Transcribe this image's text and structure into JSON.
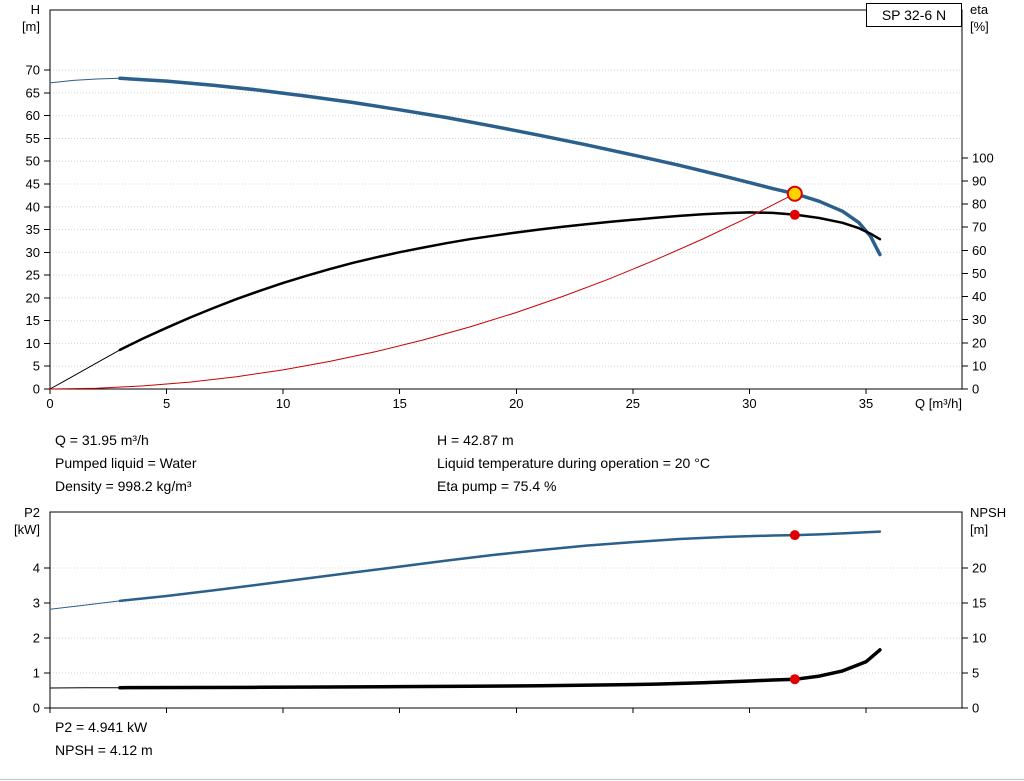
{
  "header": {
    "pump_model": "SP 32-6 N"
  },
  "duty_info": {
    "left": [
      "Q = 31.95 m³/h",
      "Pumped liquid = Water",
      "Density = 998.2 kg/m³"
    ],
    "right": [
      "H = 42.87 m",
      "Liquid temperature during operation = 20 °C",
      "Eta pump = 75.4 %"
    ]
  },
  "result_info": [
    "P2 = 4.941 kW",
    "NPSH = 4.12 m"
  ],
  "colors": {
    "curve_blue": "#2b5f8c",
    "curve_black": "#000000",
    "system_red": "#cc0000",
    "dot_red": "#e00000",
    "duty_yellow": "#ffd400"
  },
  "chart_data": [
    {
      "id": "qh",
      "type": "line",
      "title": "SP 32-6 N",
      "x_axis": {
        "label": "Q [m³/h]",
        "min": 0,
        "max": 39.12,
        "ticks": [
          0,
          5,
          10,
          15,
          20,
          25,
          30,
          35
        ],
        "show_labels": true
      },
      "y_left": {
        "label": "H",
        "unit": "[m]",
        "min": 0,
        "max": 83.2,
        "ticks": [
          0,
          5,
          10,
          15,
          20,
          25,
          30,
          35,
          40,
          45,
          50,
          55,
          60,
          65,
          70
        ]
      },
      "y_right": {
        "label": "eta",
        "unit": "[%]",
        "min": 0,
        "max": 164,
        "ticks": [
          0,
          10,
          20,
          30,
          40,
          50,
          60,
          70,
          80,
          90,
          100
        ]
      },
      "grid": true,
      "series": [
        {
          "name": "qh-curve-lead",
          "axis": "left",
          "color": "#2b5f8c",
          "width": 1,
          "points": [
            [
              0,
              67.2
            ],
            [
              1,
              67.75
            ],
            [
              2,
              68.05
            ],
            [
              3,
              68.2
            ]
          ]
        },
        {
          "name": "qh-curve",
          "axis": "left",
          "color": "#2b5f8c",
          "width": 3.5,
          "points": [
            [
              3,
              68.2
            ],
            [
              5,
              67.6
            ],
            [
              7,
              66.7
            ],
            [
              9,
              65.6
            ],
            [
              11,
              64.3
            ],
            [
              13,
              62.9
            ],
            [
              15,
              61.3
            ],
            [
              17,
              59.6
            ],
            [
              19,
              57.7
            ],
            [
              21,
              55.7
            ],
            [
              23,
              53.6
            ],
            [
              25,
              51.4
            ],
            [
              27,
              49.1
            ],
            [
              29,
              46.6
            ],
            [
              30,
              45.3
            ],
            [
              31,
              44.0
            ],
            [
              32,
              42.8
            ],
            [
              33,
              41.2
            ],
            [
              34,
              39.0
            ],
            [
              34.7,
              36.5
            ],
            [
              35.2,
              33.5
            ],
            [
              35.6,
              29.5
            ]
          ]
        },
        {
          "name": "eta-curve-lead",
          "axis": "right",
          "color": "#000000",
          "width": 1,
          "points": [
            [
              0,
              0
            ],
            [
              1,
              5.6
            ],
            [
              2,
              11.3
            ],
            [
              3,
              16.9
            ]
          ]
        },
        {
          "name": "eta-curve",
          "axis": "right",
          "color": "#000000",
          "width": 2.5,
          "points": [
            [
              3,
              16.9
            ],
            [
              4,
              21.9
            ],
            [
              5,
              26.5
            ],
            [
              6,
              30.9
            ],
            [
              7,
              35.0
            ],
            [
              8,
              38.9
            ],
            [
              9,
              42.5
            ],
            [
              10,
              45.9
            ],
            [
              11,
              49.0
            ],
            [
              12,
              51.9
            ],
            [
              13,
              54.6
            ],
            [
              14,
              57.0
            ],
            [
              15,
              59.2
            ],
            [
              16,
              61.2
            ],
            [
              17,
              63.1
            ],
            [
              18,
              64.8
            ],
            [
              19,
              66.3
            ],
            [
              20,
              67.7
            ],
            [
              21,
              69.0
            ],
            [
              22,
              70.2
            ],
            [
              23,
              71.3
            ],
            [
              24,
              72.3
            ],
            [
              25,
              73.2
            ],
            [
              26,
              74.1
            ],
            [
              27,
              74.9
            ],
            [
              28,
              75.6
            ],
            [
              29,
              76.1
            ],
            [
              30,
              76.4
            ],
            [
              31,
              76.2
            ],
            [
              32,
              75.4
            ],
            [
              33,
              74.0
            ],
            [
              34,
              71.9
            ],
            [
              34.7,
              69.6
            ],
            [
              35.2,
              67.2
            ],
            [
              35.6,
              64.8
            ]
          ]
        },
        {
          "name": "system-curve",
          "axis": "left",
          "color": "#cc0000",
          "width": 1,
          "points": [
            [
              0,
              0
            ],
            [
              2,
              0.17
            ],
            [
              4,
              0.67
            ],
            [
              6,
              1.51
            ],
            [
              8,
              2.69
            ],
            [
              10,
              4.2
            ],
            [
              12,
              6.05
            ],
            [
              14,
              8.23
            ],
            [
              16,
              10.75
            ],
            [
              18,
              13.61
            ],
            [
              20,
              16.8
            ],
            [
              22,
              20.33
            ],
            [
              24,
              24.19
            ],
            [
              26,
              28.4
            ],
            [
              28,
              32.93
            ],
            [
              30,
              37.81
            ],
            [
              31.95,
              42.87
            ]
          ]
        }
      ],
      "markers": [
        {
          "name": "duty-point",
          "axis": "left",
          "x": 31.95,
          "y": 42.87,
          "r": 7,
          "fill": "#ffd400",
          "stroke": "#dd0000",
          "sw": 2,
          "interactable": true
        },
        {
          "name": "eta-duty-dot",
          "axis": "right",
          "x": 31.95,
          "y": 75.4,
          "r": 5,
          "fill": "#e00000",
          "stroke": "none",
          "sw": 0,
          "interactable": false
        }
      ]
    },
    {
      "id": "power",
      "type": "line",
      "x_axis": {
        "label": "",
        "min": 0,
        "max": 39.12,
        "ticks": [
          0,
          5,
          10,
          15,
          20,
          25,
          30,
          35
        ],
        "show_labels": false
      },
      "y_left": {
        "label": "P2",
        "unit": "[kW]",
        "min": 0,
        "max": 5.6,
        "ticks": [
          0,
          1,
          2,
          3,
          4
        ]
      },
      "y_right": {
        "label": "NPSH",
        "unit": "[m]",
        "min": 0,
        "max": 28,
        "ticks": [
          0,
          5,
          10,
          15,
          20
        ]
      },
      "grid": true,
      "series": [
        {
          "name": "p2-curve-lead",
          "axis": "left",
          "color": "#2b5f8c",
          "width": 1,
          "points": [
            [
              0,
              2.82
            ],
            [
              1.5,
              2.94
            ],
            [
              3,
              3.06
            ]
          ]
        },
        {
          "name": "p2-curve",
          "axis": "left",
          "color": "#2b5f8c",
          "width": 2.5,
          "points": [
            [
              3,
              3.06
            ],
            [
              5,
              3.2
            ],
            [
              7,
              3.36
            ],
            [
              9,
              3.53
            ],
            [
              11,
              3.7
            ],
            [
              13,
              3.87
            ],
            [
              15,
              4.04
            ],
            [
              17,
              4.21
            ],
            [
              19,
              4.37
            ],
            [
              21,
              4.51
            ],
            [
              23,
              4.64
            ],
            [
              25,
              4.74
            ],
            [
              27,
              4.83
            ],
            [
              29,
              4.89
            ],
            [
              31,
              4.93
            ],
            [
              32,
              4.94
            ],
            [
              33,
              4.96
            ],
            [
              34,
              4.99
            ],
            [
              35,
              5.02
            ],
            [
              35.6,
              5.04
            ]
          ]
        },
        {
          "name": "npsh-curve-lead",
          "axis": "right",
          "color": "#000000",
          "width": 1,
          "points": [
            [
              0,
              2.86
            ],
            [
              1.5,
              2.88
            ],
            [
              3,
              2.9
            ]
          ]
        },
        {
          "name": "npsh-curve",
          "axis": "right",
          "color": "#000000",
          "width": 3.5,
          "points": [
            [
              3,
              2.9
            ],
            [
              6,
              2.93
            ],
            [
              9,
              2.96
            ],
            [
              12,
              3.0
            ],
            [
              15,
              3.05
            ],
            [
              18,
              3.1
            ],
            [
              21,
              3.18
            ],
            [
              24,
              3.3
            ],
            [
              26,
              3.42
            ],
            [
              28,
              3.6
            ],
            [
              30,
              3.85
            ],
            [
              31,
              4.0
            ],
            [
              32,
              4.12
            ],
            [
              33,
              4.55
            ],
            [
              34,
              5.3
            ],
            [
              35,
              6.6
            ],
            [
              35.6,
              8.3
            ]
          ]
        }
      ],
      "markers": [
        {
          "name": "p2-duty-dot",
          "axis": "left",
          "x": 31.95,
          "y": 4.941,
          "r": 5,
          "fill": "#e00000",
          "stroke": "none",
          "sw": 0,
          "interactable": false
        },
        {
          "name": "npsh-duty-dot",
          "axis": "right",
          "x": 31.95,
          "y": 4.12,
          "r": 5,
          "fill": "#e00000",
          "stroke": "none",
          "sw": 0,
          "interactable": false
        }
      ]
    }
  ]
}
